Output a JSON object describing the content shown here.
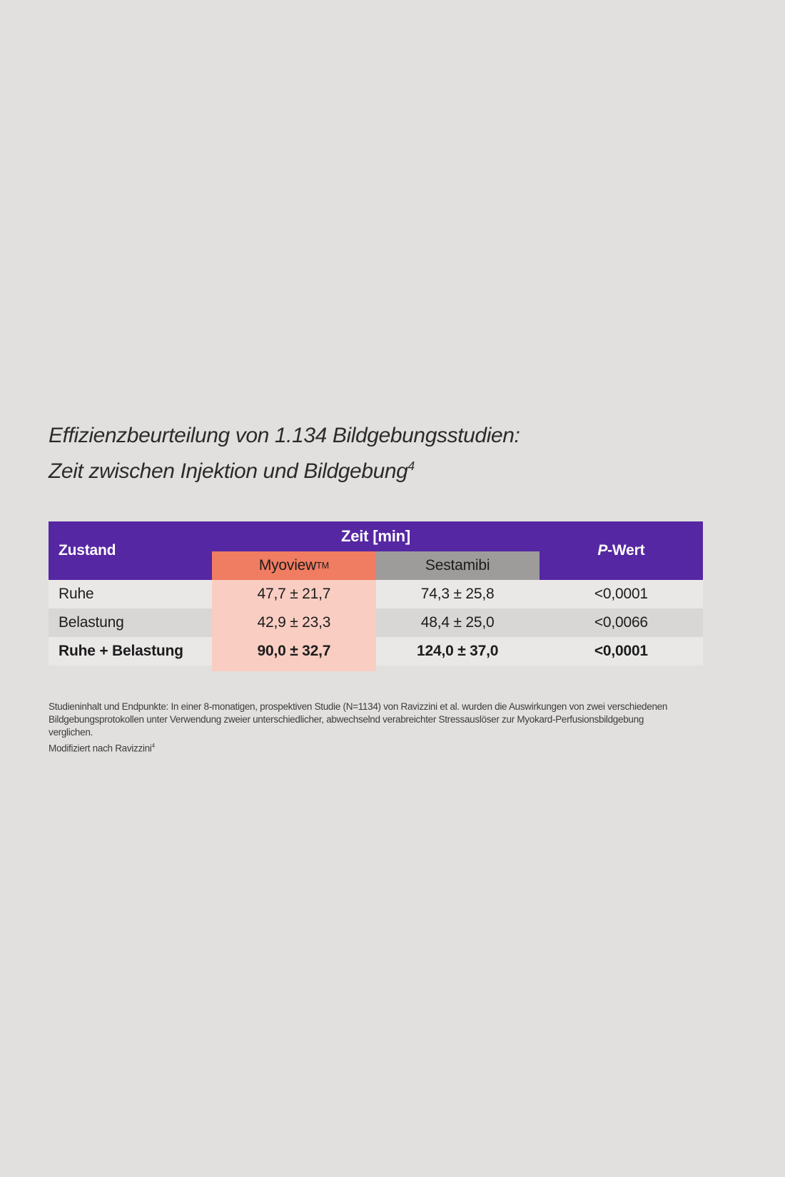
{
  "colors": {
    "page_bg": "#e1e0de",
    "header_purple": "#5627a3",
    "myoview_header_orange": "#f07c61",
    "myoview_column_salmon": "#f9cdc2",
    "sestamibi_gray": "#9d9c9b",
    "row_light": "#eae8e7",
    "row_dark": "#d9d7d5",
    "header_text": "#ffffff"
  },
  "title": {
    "line1": "Effizienzbeurteilung von 1.134 Bildgebungsstudien:",
    "line2": "Zeit zwischen Injektion und Bildgebung",
    "line2_sup": "4"
  },
  "table": {
    "header": {
      "col_zustand": "Zustand",
      "group_zeit": "Zeit [min]",
      "col_myoview": "Myoview",
      "col_myoview_sup": "TM",
      "col_sestamibi": "Sestamibi",
      "col_p_italic": "P",
      "col_p_rest": "-Wert"
    },
    "rows": [
      {
        "zustand": "Ruhe",
        "myoview": "47,7 ± 21,7",
        "sestamibi": "74,3 ± 25,8",
        "p": "<0,0001"
      },
      {
        "zustand": "Belastung",
        "myoview": "42,9 ± 23,3",
        "sestamibi": "48,4 ± 25,0",
        "p": "<0,0066"
      },
      {
        "zustand": "Ruhe + Belastung",
        "myoview": "90,0 ± 32,7",
        "sestamibi": "124,0 ± 37,0",
        "p": "<0,0001"
      }
    ]
  },
  "footnote": {
    "line1": "Studieninhalt und Endpunkte: In einer 8-monatigen, prospektiven Studie (N=1134) von Ravizzini et al. wurden die Auswirkungen von zwei verschiedenen",
    "line2": "Bildgebungsprotokollen unter Verwendung zweier unterschiedlicher, abwechselnd verabreichter Stressauslöser zur Myokard-Perfusionsbildgebung",
    "line3": "verglichen.",
    "line4": "Modifiziert nach Ravizzini",
    "line4_sup": "4"
  }
}
